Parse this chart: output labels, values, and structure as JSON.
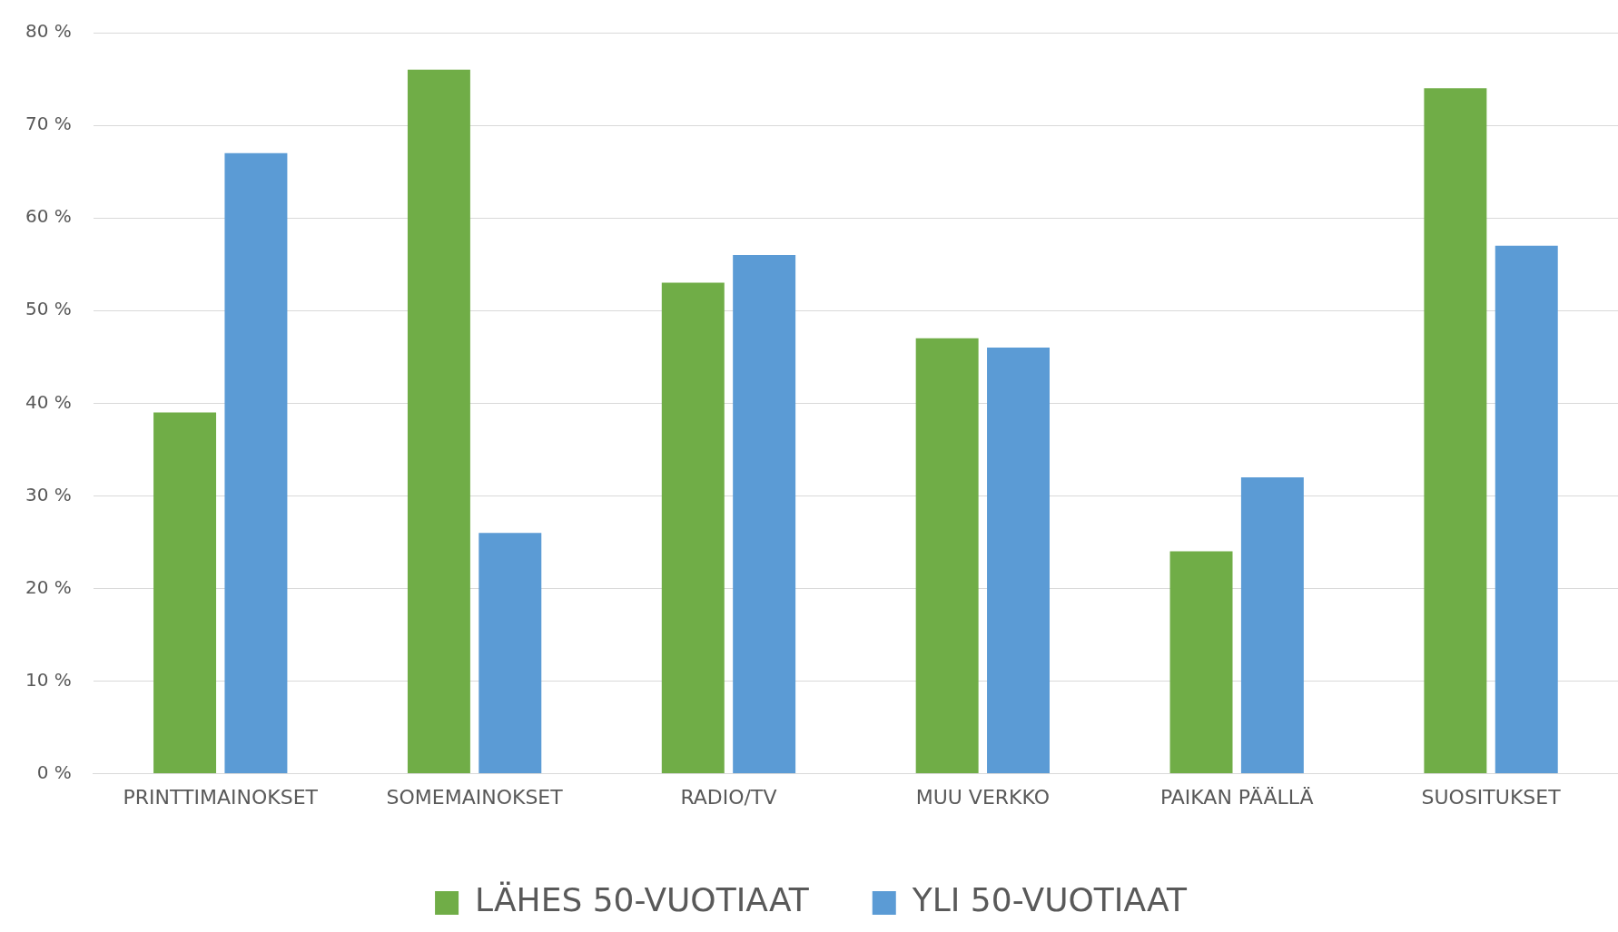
{
  "chart_data": {
    "type": "bar",
    "categories": [
      "PRINTTIMAINOKSET",
      "SOMEMAINOKSET",
      "RADIO/TV",
      "MUU VERKKO",
      "PAIKAN PÄÄLLÄ",
      "SUOSITUKSET"
    ],
    "series": [
      {
        "name": "LÄHES 50-VUOTIAAT",
        "color": "#70ad47",
        "values": [
          39,
          76,
          53,
          47,
          24,
          74
        ]
      },
      {
        "name": "YLI 50-VUOTIAAT",
        "color": "#5b9bd5",
        "values": [
          67,
          26,
          56,
          46,
          32,
          57
        ]
      }
    ],
    "ylim": [
      0,
      80
    ],
    "yticks": [
      {
        "value": 0,
        "label": "0 %"
      },
      {
        "value": 10,
        "label": "10 %"
      },
      {
        "value": 20,
        "label": "20 %"
      },
      {
        "value": 30,
        "label": "30 %"
      },
      {
        "value": 40,
        "label": "40 %"
      },
      {
        "value": 50,
        "label": "50 %"
      },
      {
        "value": 60,
        "label": "60 %"
      },
      {
        "value": 70,
        "label": "70 %"
      },
      {
        "value": 80,
        "label": "80 %"
      }
    ],
    "grid": "y",
    "legend": "bottom"
  }
}
